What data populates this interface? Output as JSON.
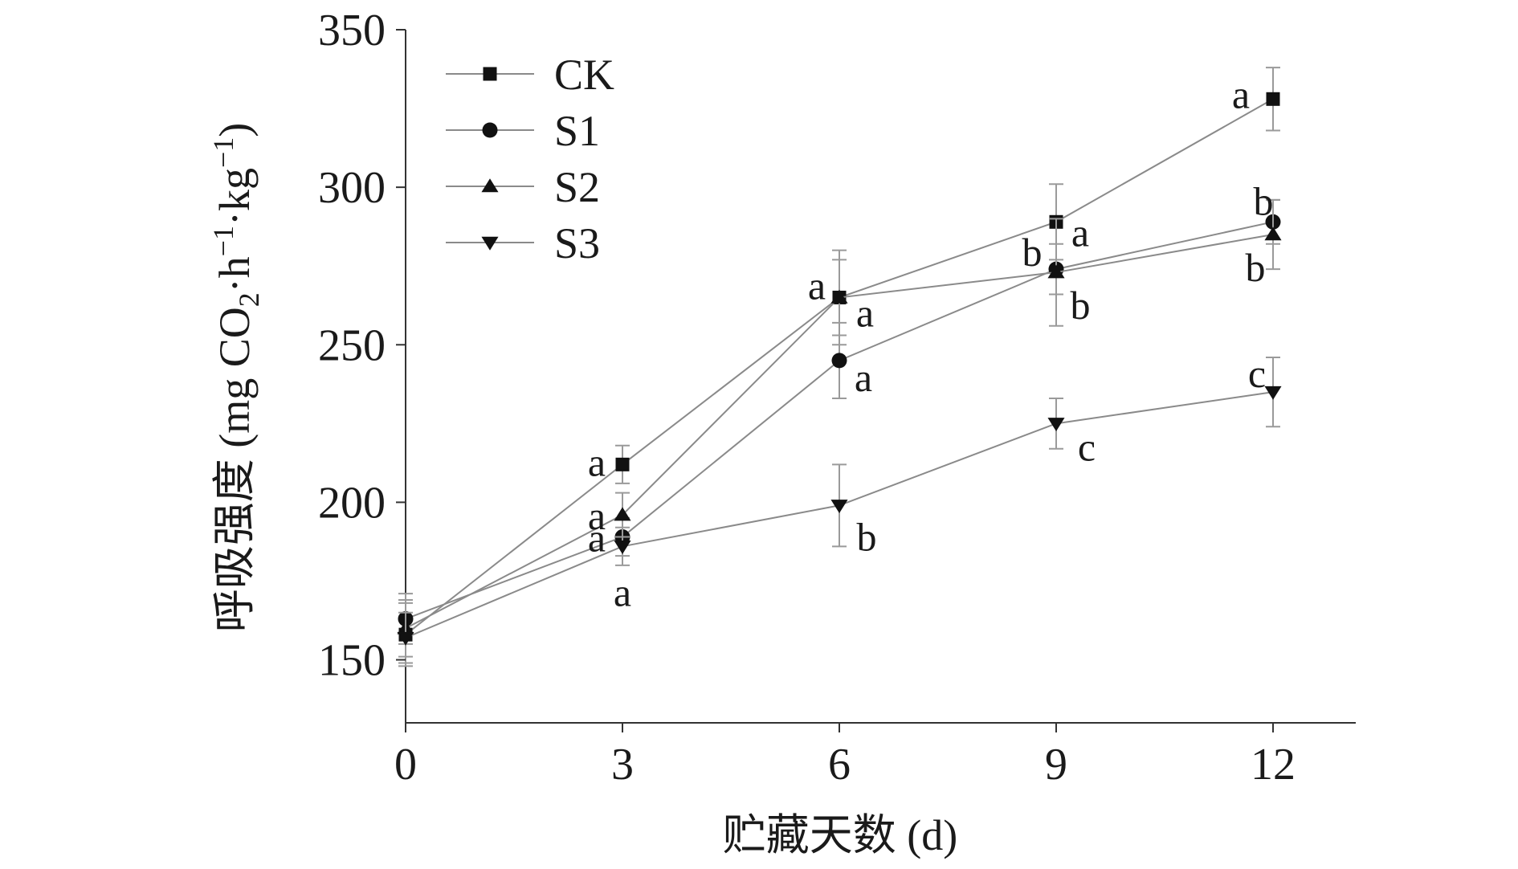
{
  "chart_data": {
    "type": "line",
    "xlabel": "贮藏天数 (d)",
    "ylabel_main": "呼吸强度 (mg CO",
    "ylabel_sub2": "2",
    "ylabel_mid": "·h",
    "ylabel_sup1": "−1",
    "ylabel_mid2": "·kg",
    "ylabel_sup2": "−1",
    "ylabel_end": ")",
    "xlim": [
      0,
      13
    ],
    "ylim": [
      130,
      350
    ],
    "x_ticks": [
      0,
      3,
      6,
      9,
      12
    ],
    "x_tick_labels": [
      "0",
      "3",
      "6",
      "9",
      "12"
    ],
    "y_ticks": [
      150,
      200,
      250,
      300,
      350
    ],
    "y_tick_labels": [
      "150",
      "200",
      "250",
      "300",
      "350"
    ],
    "legend_position": "top-left",
    "x": [
      0,
      3,
      6,
      9,
      12
    ],
    "series": [
      {
        "name": "CK",
        "marker": "square",
        "values": [
          158,
          212,
          265,
          289,
          328
        ],
        "errors": [
          10,
          6,
          15,
          12,
          10
        ],
        "labels": [
          "",
          "a",
          "a",
          "a",
          "a"
        ]
      },
      {
        "name": "S1",
        "marker": "circle",
        "values": [
          163,
          189,
          245,
          274,
          289
        ],
        "errors": [
          8,
          6,
          12,
          8,
          7
        ],
        "labels": [
          "",
          "a",
          "a",
          "b",
          "b"
        ]
      },
      {
        "name": "S2",
        "marker": "triangle-up",
        "values": [
          160,
          196,
          265,
          273,
          285
        ],
        "errors": [
          9,
          7,
          12,
          17,
          11
        ],
        "labels": [
          "",
          "a",
          "a",
          "b",
          "b"
        ]
      },
      {
        "name": "S3",
        "marker": "triangle-down",
        "values": [
          157,
          186,
          199,
          225,
          235
        ],
        "errors": [
          8,
          6,
          13,
          8,
          11
        ],
        "labels": [
          "",
          "a",
          "b",
          "c",
          "c"
        ]
      }
    ]
  }
}
